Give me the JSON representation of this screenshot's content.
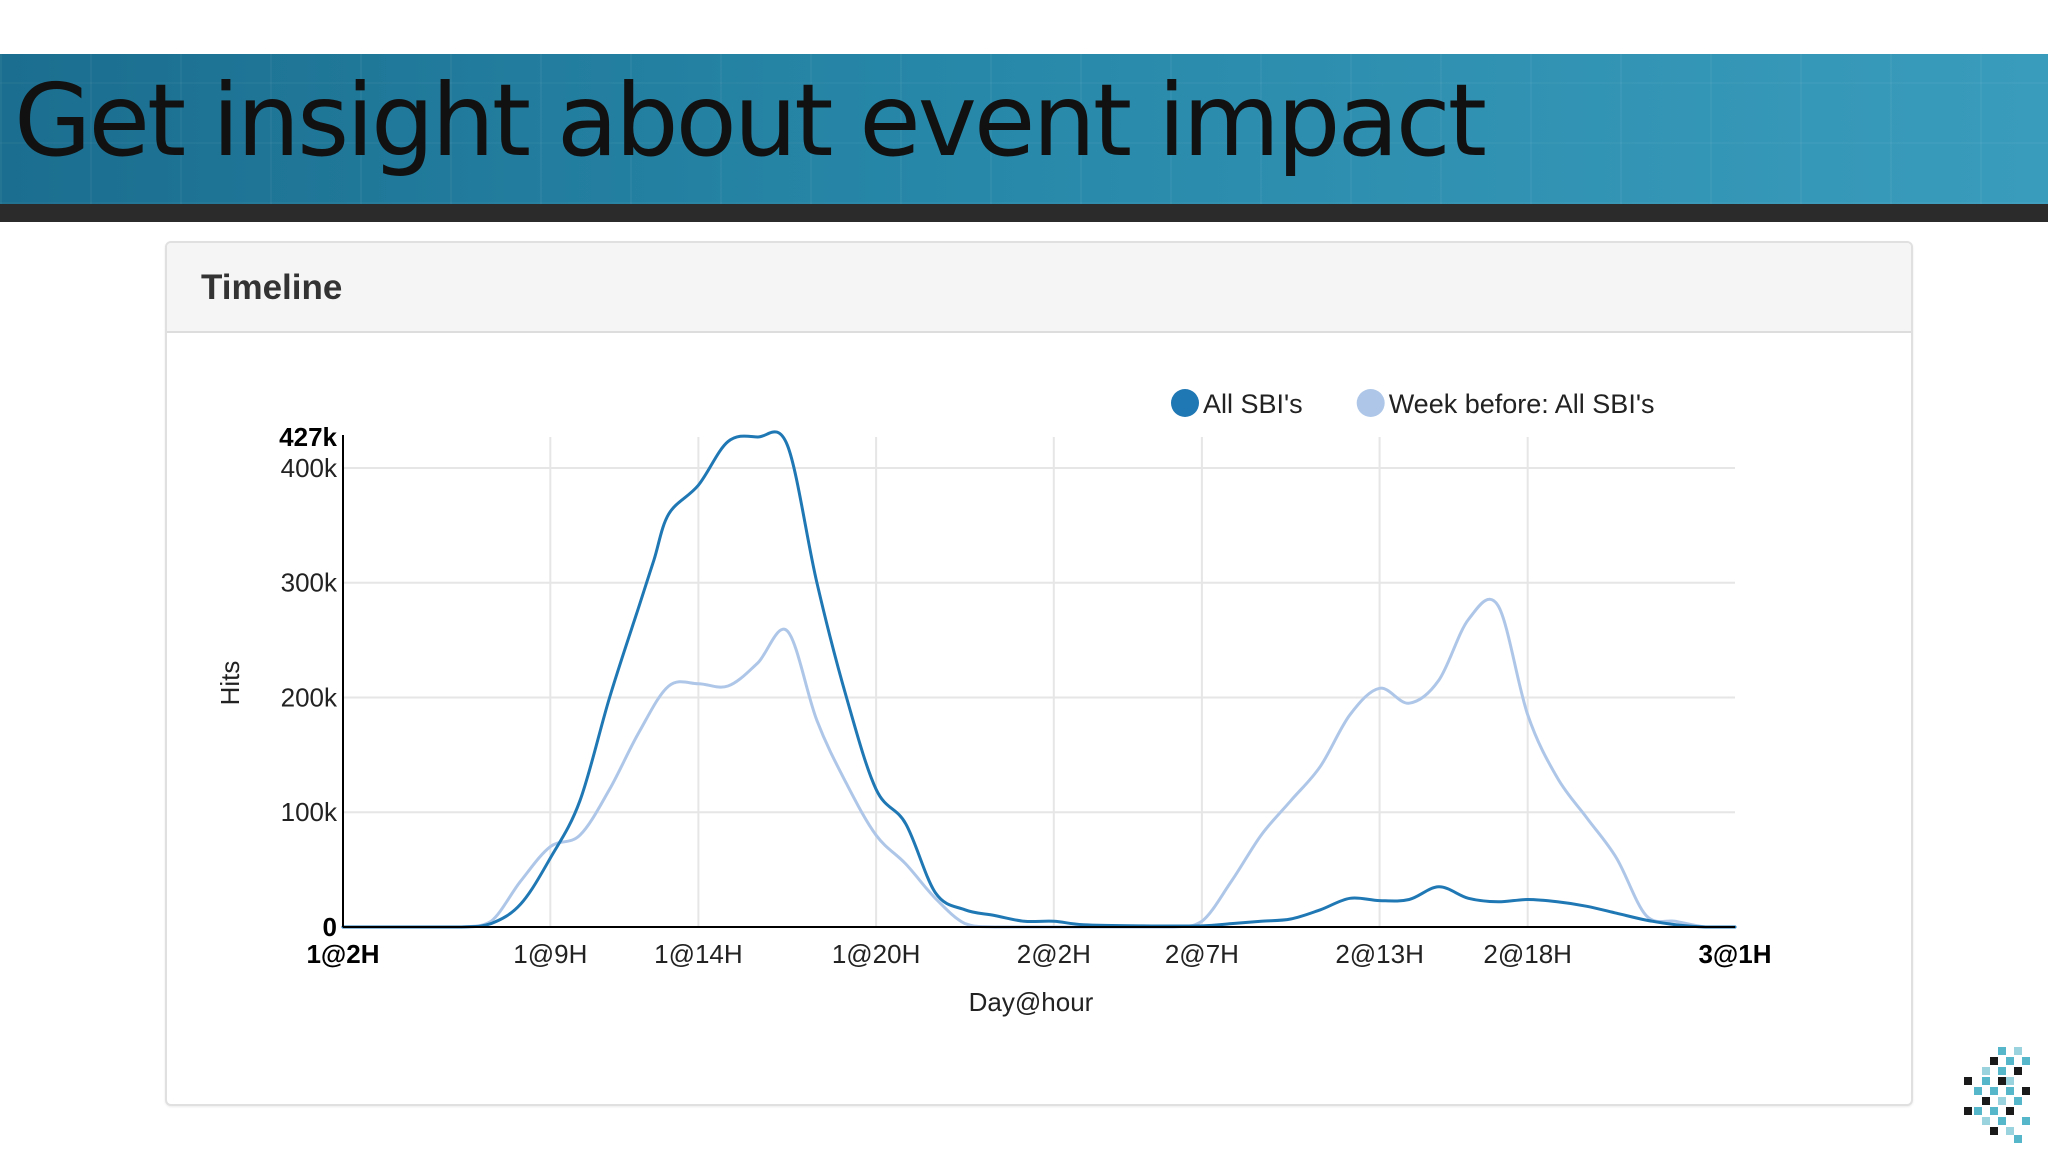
{
  "slide": {
    "title": "Get insight about event impact"
  },
  "panel": {
    "title": "Timeline"
  },
  "colors": {
    "banner": "#2787a8",
    "series_current": "#1f77b4",
    "series_previous": "#aec7e8",
    "grid": "#e6e6e6",
    "axis": "#000000"
  },
  "chart_data": {
    "type": "line",
    "xlabel": "Day@hour",
    "ylabel": "Hits",
    "ylim": [
      0,
      427000
    ],
    "grid": true,
    "legend_position": "top-right",
    "y_ticks": [
      {
        "value": 0,
        "label": "0",
        "bold": true
      },
      {
        "value": 100000,
        "label": "100k",
        "bold": false
      },
      {
        "value": 200000,
        "label": "200k",
        "bold": false
      },
      {
        "value": 300000,
        "label": "300k",
        "bold": false
      },
      {
        "value": 400000,
        "label": "400k",
        "bold": false
      },
      {
        "value": 427000,
        "label": "427k",
        "bold": true
      }
    ],
    "x_ticks": [
      {
        "value": 0,
        "label": "1@2H",
        "bold": true
      },
      {
        "value": 7,
        "label": "1@9H",
        "bold": false
      },
      {
        "value": 12,
        "label": "1@14H",
        "bold": false
      },
      {
        "value": 18,
        "label": "1@20H",
        "bold": false
      },
      {
        "value": 24,
        "label": "2@2H",
        "bold": false
      },
      {
        "value": 29,
        "label": "2@7H",
        "bold": false
      },
      {
        "value": 35,
        "label": "2@13H",
        "bold": false
      },
      {
        "value": 40,
        "label": "2@18H",
        "bold": false
      },
      {
        "value": 47,
        "label": "3@1H",
        "bold": true
      }
    ],
    "series": [
      {
        "name": "All SBI's",
        "color": "#1f77b4",
        "points": [
          [
            0,
            0
          ],
          [
            2,
            0
          ],
          [
            4,
            0
          ],
          [
            5,
            3000
          ],
          [
            6,
            20000
          ],
          [
            7,
            60000
          ],
          [
            8,
            110000
          ],
          [
            9,
            200000
          ],
          [
            10,
            280000
          ],
          [
            10.5,
            320000
          ],
          [
            11,
            360000
          ],
          [
            12,
            385000
          ],
          [
            13,
            423000
          ],
          [
            14,
            427000
          ],
          [
            15,
            420000
          ],
          [
            16,
            300000
          ],
          [
            17,
            200000
          ],
          [
            18,
            120000
          ],
          [
            19,
            90000
          ],
          [
            20,
            30000
          ],
          [
            21,
            15000
          ],
          [
            22,
            10000
          ],
          [
            23,
            5000
          ],
          [
            24,
            5000
          ],
          [
            25,
            2000
          ],
          [
            27,
            1000
          ],
          [
            29,
            1000
          ],
          [
            30,
            3000
          ],
          [
            31,
            5000
          ],
          [
            32,
            7000
          ],
          [
            33,
            15000
          ],
          [
            34,
            25000
          ],
          [
            35,
            23000
          ],
          [
            36,
            24000
          ],
          [
            37,
            35000
          ],
          [
            38,
            25000
          ],
          [
            39,
            22000
          ],
          [
            40,
            24000
          ],
          [
            41,
            22000
          ],
          [
            42,
            18000
          ],
          [
            43,
            12000
          ],
          [
            44,
            6000
          ],
          [
            45,
            2000
          ],
          [
            46,
            0
          ],
          [
            47,
            0
          ]
        ]
      },
      {
        "name": "Week before: All SBI's",
        "color": "#aec7e8",
        "points": [
          [
            0,
            0
          ],
          [
            2,
            0
          ],
          [
            4,
            0
          ],
          [
            5,
            5000
          ],
          [
            6,
            40000
          ],
          [
            7,
            70000
          ],
          [
            8,
            80000
          ],
          [
            9,
            120000
          ],
          [
            10,
            170000
          ],
          [
            11,
            210000
          ],
          [
            12,
            212000
          ],
          [
            13,
            210000
          ],
          [
            14,
            230000
          ],
          [
            15,
            258000
          ],
          [
            16,
            180000
          ],
          [
            17,
            125000
          ],
          [
            18,
            80000
          ],
          [
            19,
            55000
          ],
          [
            20,
            25000
          ],
          [
            21,
            3000
          ],
          [
            22,
            0
          ],
          [
            25,
            0
          ],
          [
            28,
            0
          ],
          [
            29,
            5000
          ],
          [
            30,
            40000
          ],
          [
            31,
            80000
          ],
          [
            32,
            110000
          ],
          [
            33,
            140000
          ],
          [
            34,
            185000
          ],
          [
            35,
            208000
          ],
          [
            36,
            195000
          ],
          [
            37,
            215000
          ],
          [
            38,
            268000
          ],
          [
            39,
            280000
          ],
          [
            40,
            185000
          ],
          [
            41,
            130000
          ],
          [
            42,
            95000
          ],
          [
            43,
            60000
          ],
          [
            44,
            10000
          ],
          [
            45,
            5000
          ],
          [
            46,
            0
          ],
          [
            47,
            0
          ]
        ]
      }
    ]
  }
}
